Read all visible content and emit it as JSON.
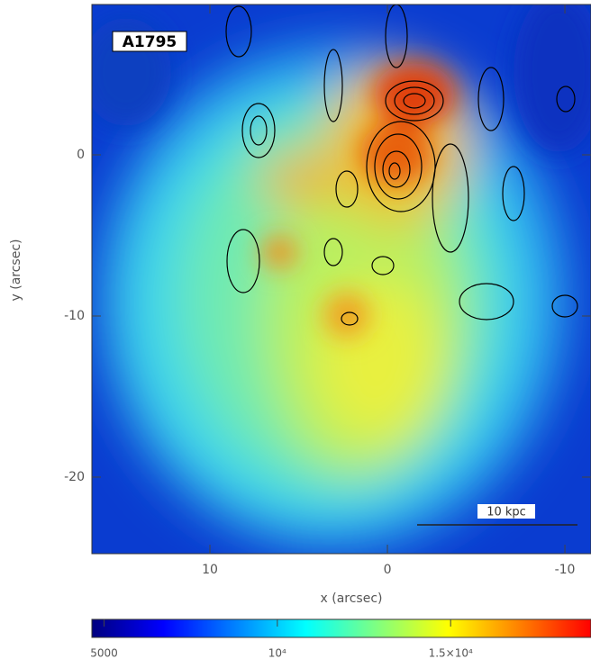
{
  "chart_data": {
    "type": "image",
    "label": "A1795",
    "xlabel": "x (arcsec)",
    "ylabel": "y (arcsec)",
    "xlim": [
      16.65,
      -11.47
    ],
    "ylim": [
      -24.75,
      9.33
    ],
    "xticks": [
      10,
      0,
      -10
    ],
    "yticks": [
      0,
      -10,
      -20
    ],
    "scalebar_label": "10 kpc",
    "colormap": [
      "#00007f",
      "#0000ff",
      "#0080ff",
      "#00ffff",
      "#80ff80",
      "#ffff00",
      "#ff8000",
      "#ff0000"
    ],
    "colorbar": {
      "clim": [
        4650,
        19050
      ],
      "ticks": [
        5000,
        {
          "value": 10000,
          "label": "10⁴"
        },
        {
          "value": 15000,
          "label": "1.5×10⁴"
        }
      ]
    }
  }
}
